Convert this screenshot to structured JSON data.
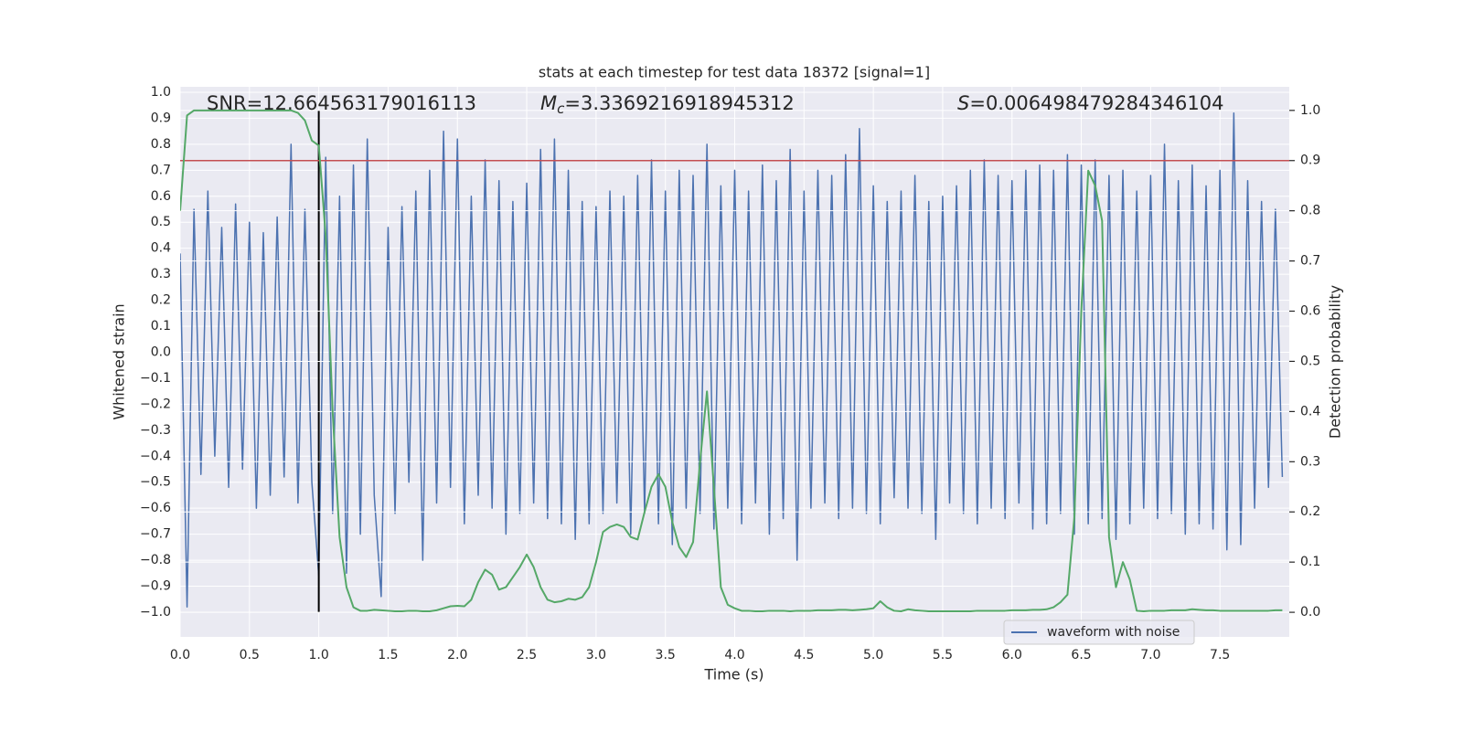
{
  "chart_data": {
    "type": "line",
    "title": "stats at each timestep for test data 18372 [signal=1]",
    "xlabel": "Time (s)",
    "ylabel": "Whitened strain",
    "y2label": "Detection probability",
    "annotations": [
      {
        "text": "SNR=12.664563179016113"
      },
      {
        "symbol": "M",
        "subscript": "c",
        "text": "=3.3369216918945312"
      },
      {
        "symbol": "S",
        "text": "=0.006498479284346104"
      }
    ],
    "xlim": [
      0,
      8
    ],
    "ylim": [
      -1.095,
      1.021
    ],
    "y2lim": [
      -0.049,
      1.047
    ],
    "grid": true,
    "legend": "lower right",
    "background": "#eaeaf2",
    "xticks": [
      {
        "value": 0,
        "label": "0.0"
      },
      {
        "value": 0.5,
        "label": "0.5"
      },
      {
        "value": 1,
        "label": "1.0"
      },
      {
        "value": 1.5,
        "label": "1.5"
      },
      {
        "value": 2,
        "label": "2.0"
      },
      {
        "value": 2.5,
        "label": "2.5"
      },
      {
        "value": 3,
        "label": "3.0"
      },
      {
        "value": 3.5,
        "label": "3.5"
      },
      {
        "value": 4,
        "label": "4.0"
      },
      {
        "value": 4.5,
        "label": "4.5"
      },
      {
        "value": 5,
        "label": "5.0"
      },
      {
        "value": 5.5,
        "label": "5.5"
      },
      {
        "value": 6,
        "label": "6.0"
      },
      {
        "value": 6.5,
        "label": "6.5"
      },
      {
        "value": 7,
        "label": "7.0"
      },
      {
        "value": 7.5,
        "label": "7.5"
      }
    ],
    "yticks": [
      {
        "value": -1,
        "label": "−1.0"
      },
      {
        "value": -0.9,
        "label": "−0.9"
      },
      {
        "value": -0.8,
        "label": "−0.8"
      },
      {
        "value": -0.7,
        "label": "−0.7"
      },
      {
        "value": -0.6,
        "label": "−0.6"
      },
      {
        "value": -0.5,
        "label": "−0.5"
      },
      {
        "value": -0.4,
        "label": "−0.4"
      },
      {
        "value": -0.3,
        "label": "−0.3"
      },
      {
        "value": -0.2,
        "label": "−0.2"
      },
      {
        "value": -0.1,
        "label": "−0.1"
      },
      {
        "value": 0,
        "label": "0.0"
      },
      {
        "value": 0.1,
        "label": "0.1"
      },
      {
        "value": 0.2,
        "label": "0.2"
      },
      {
        "value": 0.3,
        "label": "0.3"
      },
      {
        "value": 0.4,
        "label": "0.4"
      },
      {
        "value": 0.5,
        "label": "0.5"
      },
      {
        "value": 0.6,
        "label": "0.6"
      },
      {
        "value": 0.7,
        "label": "0.7"
      },
      {
        "value": 0.8,
        "label": "0.8"
      },
      {
        "value": 0.9,
        "label": "0.9"
      },
      {
        "value": 1,
        "label": "1.0"
      }
    ],
    "y2ticks": [
      {
        "value": 0,
        "label": "0.0"
      },
      {
        "value": 0.1,
        "label": "0.1"
      },
      {
        "value": 0.2,
        "label": "0.2"
      },
      {
        "value": 0.3,
        "label": "0.3"
      },
      {
        "value": 0.4,
        "label": "0.4"
      },
      {
        "value": 0.5,
        "label": "0.5"
      },
      {
        "value": 0.6,
        "label": "0.6"
      },
      {
        "value": 0.7,
        "label": "0.7"
      },
      {
        "value": 0.8,
        "label": "0.8"
      },
      {
        "value": 0.9,
        "label": "0.9"
      },
      {
        "value": 1,
        "label": "1.0"
      }
    ],
    "hlines": [
      {
        "y": 0.9,
        "axis": "y2",
        "color": "#c44e52"
      }
    ],
    "vlines": [
      {
        "x": 1.0,
        "ymin": -1.0,
        "ymax": 0.93,
        "color": "#000000"
      }
    ],
    "x": [
      0,
      0.05,
      0.1,
      0.15,
      0.2,
      0.25,
      0.3,
      0.35,
      0.4,
      0.45,
      0.5,
      0.55,
      0.6,
      0.65,
      0.7,
      0.75,
      0.8,
      0.85,
      0.9,
      0.95,
      1,
      1.05,
      1.1,
      1.15,
      1.2,
      1.25,
      1.3,
      1.35,
      1.4,
      1.45,
      1.5,
      1.55,
      1.6,
      1.65,
      1.7,
      1.75,
      1.8,
      1.85,
      1.9,
      1.95,
      2,
      2.05,
      2.1,
      2.15,
      2.2,
      2.25,
      2.3,
      2.35,
      2.4,
      2.45,
      2.5,
      2.55,
      2.6,
      2.65,
      2.7,
      2.75,
      2.8,
      2.85,
      2.9,
      2.95,
      3,
      3.05,
      3.1,
      3.15,
      3.2,
      3.25,
      3.3,
      3.35,
      3.4,
      3.45,
      3.5,
      3.55,
      3.6,
      3.65,
      3.7,
      3.75,
      3.8,
      3.85,
      3.9,
      3.95,
      4,
      4.05,
      4.1,
      4.15,
      4.2,
      4.25,
      4.3,
      4.35,
      4.4,
      4.45,
      4.5,
      4.55,
      4.6,
      4.65,
      4.7,
      4.75,
      4.8,
      4.85,
      4.9,
      4.95,
      5,
      5.05,
      5.1,
      5.15,
      5.2,
      5.25,
      5.3,
      5.35,
      5.4,
      5.45,
      5.5,
      5.55,
      5.6,
      5.65,
      5.7,
      5.75,
      5.8,
      5.85,
      5.9,
      5.95,
      6,
      6.05,
      6.1,
      6.15,
      6.2,
      6.25,
      6.3,
      6.35,
      6.4,
      6.45,
      6.5,
      6.55,
      6.6,
      6.65,
      6.7,
      6.75,
      6.8,
      6.85,
      6.9,
      6.95,
      7,
      7.05,
      7.1,
      7.15,
      7.2,
      7.25,
      7.3,
      7.35,
      7.4,
      7.45,
      7.5,
      7.55,
      7.6,
      7.65,
      7.7,
      7.75,
      7.8,
      7.85,
      7.9,
      7.95
    ],
    "series": [
      {
        "name": "waveform with noise",
        "color": "#4c72b0",
        "axis": "y",
        "values": [
          0.38,
          -0.98,
          0.55,
          -0.47,
          0.62,
          -0.4,
          0.48,
          -0.52,
          0.57,
          -0.45,
          0.5,
          -0.6,
          0.46,
          -0.55,
          0.52,
          -0.48,
          0.8,
          -0.58,
          0.55,
          -0.5,
          -0.86,
          0.75,
          -0.62,
          0.6,
          -0.85,
          0.72,
          -0.7,
          0.82,
          -0.55,
          -0.94,
          0.48,
          -0.62,
          0.56,
          -0.5,
          0.62,
          -0.8,
          0.7,
          -0.58,
          0.85,
          -0.52,
          0.82,
          -0.66,
          0.6,
          -0.55,
          0.74,
          -0.6,
          0.66,
          -0.7,
          0.58,
          -0.62,
          0.65,
          -0.58,
          0.78,
          -0.64,
          0.82,
          -0.66,
          0.7,
          -0.72,
          0.58,
          -0.66,
          0.56,
          -0.62,
          0.62,
          -0.58,
          0.6,
          -0.7,
          0.68,
          -0.62,
          0.74,
          -0.66,
          0.62,
          -0.74,
          0.7,
          -0.6,
          0.68,
          -0.62,
          0.8,
          -0.68,
          0.64,
          -0.6,
          0.7,
          -0.66,
          0.62,
          -0.58,
          0.72,
          -0.7,
          0.66,
          -0.64,
          0.78,
          -0.8,
          0.62,
          -0.6,
          0.7,
          -0.58,
          0.68,
          -0.64,
          0.76,
          -0.6,
          0.86,
          -0.62,
          0.64,
          -0.66,
          0.58,
          -0.56,
          0.62,
          -0.6,
          0.68,
          -0.62,
          0.58,
          -0.72,
          0.6,
          -0.58,
          0.64,
          -0.62,
          0.7,
          -0.66,
          0.74,
          -0.6,
          0.68,
          -0.64,
          0.66,
          -0.58,
          0.7,
          -0.68,
          0.72,
          -0.66,
          0.7,
          -0.62,
          0.76,
          -0.7,
          0.72,
          -0.66,
          0.74,
          -0.64,
          0.68,
          -0.72,
          0.7,
          -0.66,
          0.62,
          -0.6,
          0.68,
          -0.64,
          0.8,
          -0.62,
          0.66,
          -0.7,
          0.72,
          -0.66,
          0.64,
          -0.68,
          0.7,
          -0.76,
          0.92,
          -0.74,
          0.66,
          -0.6,
          0.58,
          -0.52,
          0.55,
          -0.48
        ]
      },
      {
        "name": "detection probability",
        "color": "#55a868",
        "axis": "y2",
        "legend": false,
        "values": [
          0.8,
          0.99,
          1.0,
          1.0,
          1.0,
          1.0,
          1.0,
          1.0,
          1.0,
          1.0,
          1.0,
          1.0,
          1.0,
          1.0,
          1.0,
          1.0,
          1.0,
          0.995,
          0.98,
          0.94,
          0.93,
          0.75,
          0.4,
          0.15,
          0.05,
          0.01,
          0.003,
          0.003,
          0.005,
          0.004,
          0.003,
          0.002,
          0.002,
          0.003,
          0.003,
          0.002,
          0.002,
          0.004,
          0.008,
          0.012,
          0.013,
          0.012,
          0.025,
          0.06,
          0.085,
          0.075,
          0.045,
          0.05,
          0.07,
          0.09,
          0.115,
          0.09,
          0.05,
          0.025,
          0.02,
          0.022,
          0.027,
          0.025,
          0.03,
          0.05,
          0.1,
          0.16,
          0.17,
          0.175,
          0.17,
          0.15,
          0.145,
          0.2,
          0.25,
          0.275,
          0.25,
          0.18,
          0.13,
          0.11,
          0.14,
          0.3,
          0.44,
          0.25,
          0.05,
          0.015,
          0.008,
          0.003,
          0.003,
          0.002,
          0.002,
          0.003,
          0.003,
          0.003,
          0.002,
          0.003,
          0.003,
          0.003,
          0.004,
          0.004,
          0.004,
          0.005,
          0.005,
          0.004,
          0.005,
          0.006,
          0.008,
          0.022,
          0.01,
          0.003,
          0.002,
          0.006,
          0.004,
          0.003,
          0.002,
          0.002,
          0.002,
          0.002,
          0.002,
          0.002,
          0.002,
          0.003,
          0.003,
          0.003,
          0.003,
          0.003,
          0.004,
          0.004,
          0.004,
          0.005,
          0.005,
          0.006,
          0.01,
          0.02,
          0.035,
          0.19,
          0.6,
          0.88,
          0.85,
          0.78,
          0.15,
          0.05,
          0.1,
          0.065,
          0.003,
          0.002,
          0.003,
          0.003,
          0.003,
          0.004,
          0.004,
          0.004,
          0.006,
          0.005,
          0.004,
          0.004,
          0.003,
          0.003,
          0.003,
          0.003,
          0.003,
          0.003,
          0.003,
          0.003,
          0.004,
          0.004
        ]
      }
    ]
  }
}
